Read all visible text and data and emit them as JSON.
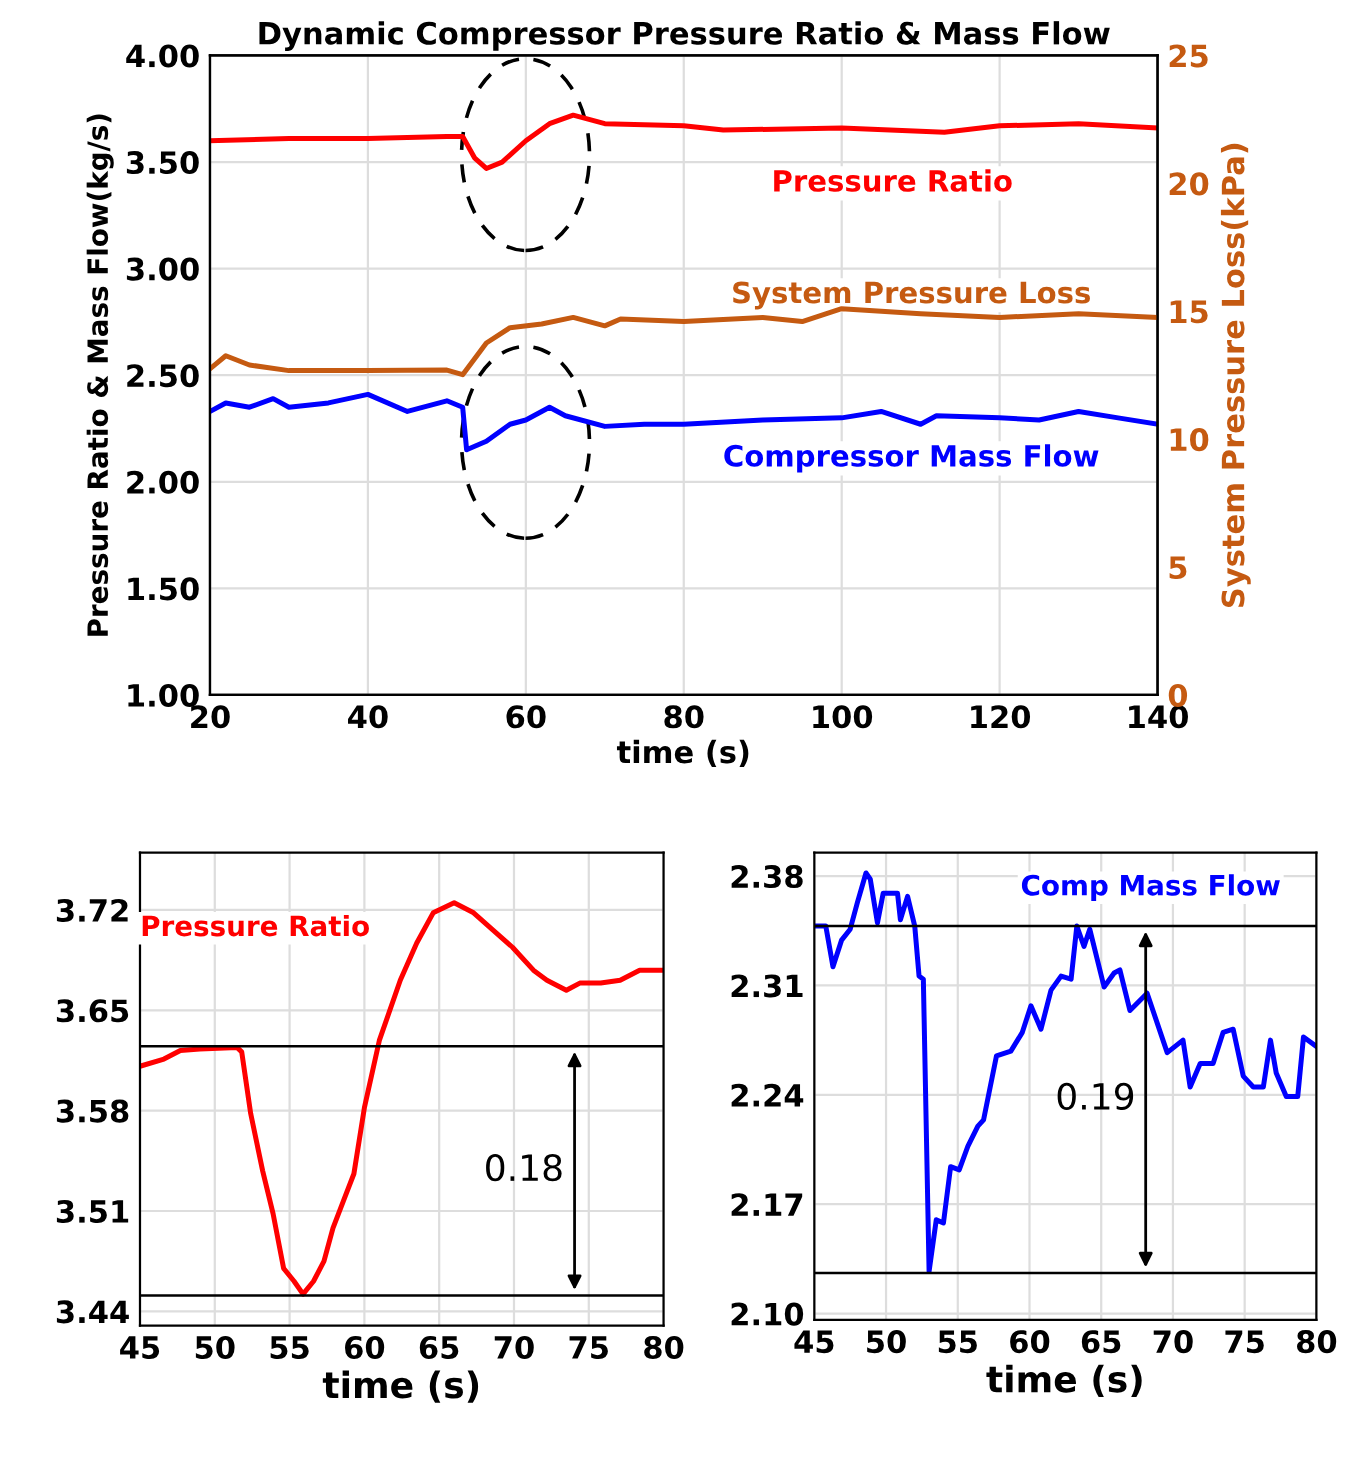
{
  "chart_data": [
    {
      "type": "line",
      "title": "Dynamic Compressor Pressure Ratio & Mass Flow",
      "xlabel": "time (s)",
      "ylabel": "Pressure Ratio & Mass Flow(kg/s)",
      "y2label": "System Pressure Loss(kPa)",
      "xlim": [
        20,
        140
      ],
      "xticks": [
        20,
        40,
        60,
        80,
        100,
        120,
        140
      ],
      "ylim": [
        1,
        4
      ],
      "yticks": [
        {
          "value": 1,
          "label": "1.00"
        },
        {
          "value": 1.5,
          "label": "1.50"
        },
        {
          "value": 2,
          "label": "2.00"
        },
        {
          "value": 2.5,
          "label": "2.50"
        },
        {
          "value": 3,
          "label": "3.00"
        },
        {
          "value": 3.5,
          "label": "3.50"
        },
        {
          "value": 4,
          "label": "4.00"
        }
      ],
      "y2lim": [
        0,
        25
      ],
      "y2ticks": [
        0,
        5,
        10,
        15,
        20,
        25
      ],
      "grid": true,
      "series": [
        {
          "name": "Pressure Ratio",
          "color": "#ff0000",
          "x": [
            20,
            30,
            40,
            50,
            52,
            53.5,
            55,
            57,
            60,
            63,
            66,
            70,
            80,
            85,
            100,
            113,
            120,
            130,
            140
          ],
          "values": [
            3.6,
            3.61,
            3.61,
            3.62,
            3.62,
            3.52,
            3.47,
            3.5,
            3.6,
            3.68,
            3.72,
            3.68,
            3.67,
            3.65,
            3.66,
            3.64,
            3.67,
            3.68,
            3.66
          ]
        },
        {
          "name": "System Pressure Loss",
          "color": "#c55a11",
          "axis": "y2",
          "x": [
            20,
            22,
            25,
            30,
            40,
            50,
            52,
            55,
            58,
            62,
            66,
            70,
            72,
            80,
            90,
            95,
            100,
            110,
            120,
            130,
            140
          ],
          "values": [
            12.75,
            13.26,
            12.9,
            12.68,
            12.68,
            12.7,
            12.52,
            13.76,
            14.36,
            14.5,
            14.76,
            14.43,
            14.7,
            14.6,
            14.76,
            14.6,
            15.1,
            14.9,
            14.76,
            14.9,
            14.76
          ]
        },
        {
          "name": "Compressor Mass Flow",
          "color": "#0000ff",
          "x": [
            20,
            22,
            25,
            28,
            30,
            35,
            40,
            45,
            50,
            52,
            52.5,
            55,
            58,
            60,
            63,
            65,
            70,
            75,
            80,
            90,
            100,
            105,
            110,
            112,
            120,
            125,
            130,
            135,
            140
          ],
          "values": [
            2.33,
            2.37,
            2.35,
            2.39,
            2.35,
            2.37,
            2.41,
            2.33,
            2.38,
            2.35,
            2.15,
            2.19,
            2.27,
            2.29,
            2.35,
            2.31,
            2.26,
            2.27,
            2.27,
            2.29,
            2.3,
            2.33,
            2.27,
            2.31,
            2.3,
            2.29,
            2.33,
            2.3,
            2.27
          ]
        }
      ]
    },
    {
      "type": "line",
      "xlabel": "time (s)",
      "xlim": [
        45,
        80
      ],
      "xticks": [
        45,
        50,
        55,
        60,
        65,
        70,
        75,
        80
      ],
      "ylim": [
        3.43,
        3.76
      ],
      "yticks": [
        3.44,
        3.51,
        3.58,
        3.65,
        3.72
      ],
      "grid": true,
      "ref_lines": [
        {
          "axis": "y",
          "value": 3.625,
          "color": "#000000"
        },
        {
          "axis": "y",
          "value": 3.451,
          "color": "#000000"
        }
      ],
      "annotations": [
        "0.18"
      ],
      "series": [
        {
          "name": "Pressure Ratio",
          "color": "#ff0000",
          "x": [
            45,
            46.6,
            47.7,
            49,
            51.5,
            51.8,
            52.4,
            53.2,
            53.9,
            54.6,
            55.3,
            55.9,
            56.6,
            57.3,
            57.9,
            58.6,
            59.3,
            60,
            61,
            62.4,
            63.5,
            64.6,
            66,
            67.3,
            68.6,
            69.9,
            71.3,
            72.2,
            73.5,
            74.4,
            75.8,
            77.1,
            78.4,
            80
          ],
          "values": [
            3.611,
            3.616,
            3.622,
            3.623,
            3.624,
            3.621,
            3.578,
            3.538,
            3.508,
            3.47,
            3.461,
            3.452,
            3.461,
            3.475,
            3.498,
            3.517,
            3.536,
            3.582,
            3.629,
            3.671,
            3.697,
            3.718,
            3.725,
            3.718,
            3.706,
            3.694,
            3.678,
            3.671,
            3.664,
            3.669,
            3.669,
            3.671,
            3.678,
            3.678
          ]
        }
      ]
    },
    {
      "type": "line",
      "xlabel": "time (s)",
      "xlim": [
        45,
        80
      ],
      "xticks": [
        45,
        50,
        55,
        60,
        65,
        70,
        75,
        80
      ],
      "ylim": [
        2.096,
        2.395
      ],
      "yticks": [
        {
          "value": 2.1,
          "label": "2.10"
        },
        2.17,
        2.24,
        2.31,
        2.38
      ],
      "grid": true,
      "ref_lines": [
        {
          "axis": "y",
          "value": 2.348,
          "color": "#000000"
        },
        {
          "axis": "y",
          "value": 2.126,
          "color": "#000000"
        }
      ],
      "annotations": [
        "0.19"
      ],
      "series": [
        {
          "name": "Comp Mass Flow",
          "color": "#0000ff",
          "x": [
            45.1,
            45.8,
            46.3,
            46.9,
            47.5,
            48,
            48.6,
            48.9,
            49.4,
            49.8,
            50.8,
            51,
            51.5,
            52,
            52.3,
            52.6,
            53,
            53.5,
            54,
            54.5,
            55.1,
            55.7,
            56.4,
            56.8,
            57.7,
            58.7,
            59.5,
            60.1,
            60.8,
            61.5,
            62.2,
            62.9,
            63.3,
            63.8,
            64.2,
            65.2,
            65.9,
            66.3,
            67,
            68.2,
            69.6,
            70.7,
            71.2,
            71.9,
            72.8,
            73.5,
            74.2,
            74.9,
            75.6,
            76.3,
            76.8,
            77.2,
            77.9,
            78.7,
            79.1,
            80
          ],
          "values": [
            2.348,
            2.348,
            2.322,
            2.339,
            2.346,
            2.363,
            2.382,
            2.378,
            2.35,
            2.369,
            2.369,
            2.352,
            2.367,
            2.348,
            2.316,
            2.314,
            2.127,
            2.16,
            2.158,
            2.194,
            2.192,
            2.207,
            2.22,
            2.224,
            2.265,
            2.268,
            2.28,
            2.297,
            2.282,
            2.307,
            2.316,
            2.314,
            2.348,
            2.335,
            2.346,
            2.309,
            2.318,
            2.32,
            2.294,
            2.305,
            2.267,
            2.275,
            2.245,
            2.26,
            2.26,
            2.28,
            2.282,
            2.252,
            2.245,
            2.245,
            2.275,
            2.254,
            2.239,
            2.239,
            2.277,
            2.271
          ]
        }
      ]
    }
  ]
}
